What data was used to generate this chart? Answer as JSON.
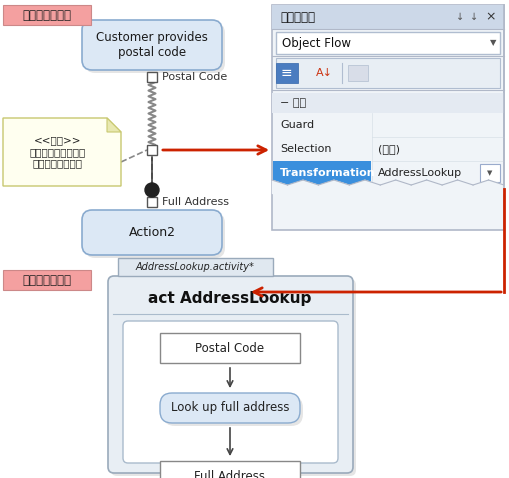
{
  "bg_color": "#ffffff",
  "diagram1_label": "ダイアグラム１",
  "diagram2_label": "ダイアグラム２",
  "node1_text": "Customer provides\npostal code",
  "postal_code_label": "Postal Code",
  "note_text": "<<変換>>\n郵便番号から完全な\n住所を検索します",
  "full_address_label": "Full Address",
  "action2_text": "Action2",
  "prop_title": "プロパティ",
  "prop_dropdown": "Object Flow",
  "prop_section": "− 動作",
  "prop_rows": [
    {
      "label": "Guard",
      "value": "",
      "highlight": false
    },
    {
      "label": "Selection",
      "value": "(なし)",
      "highlight": false
    },
    {
      "label": "Transformation",
      "value": "AddressLookup",
      "highlight": true
    }
  ],
  "d2_tab": "AddressLookup.activity*",
  "d2_title": "act AddressLookup",
  "d2_nodes": [
    "Postal Code",
    "Look up full address",
    "Full Address"
  ],
  "arrow_red": "#cc2200",
  "node_fill": "#dce8f5",
  "node_border": "#8aabcf",
  "note_fill": "#fffff0",
  "note_border": "#c8c870",
  "panel_bg": "#f0f4f8",
  "panel_border": "#b0b8c8",
  "panel_title_bg": "#ccd8e8",
  "highlight_bg": "#3a8fdd",
  "row_sep": "#d8e0e8",
  "d2_outer_fill": "#e8eef4",
  "d2_outer_border": "#9aaabb",
  "d2_inner_fill": "#ffffff",
  "d2_inner_border": "#aabbcc",
  "d2_action_fill": "#dce8f5",
  "zigzag_color": "#888888",
  "dashed_color": "#666666"
}
